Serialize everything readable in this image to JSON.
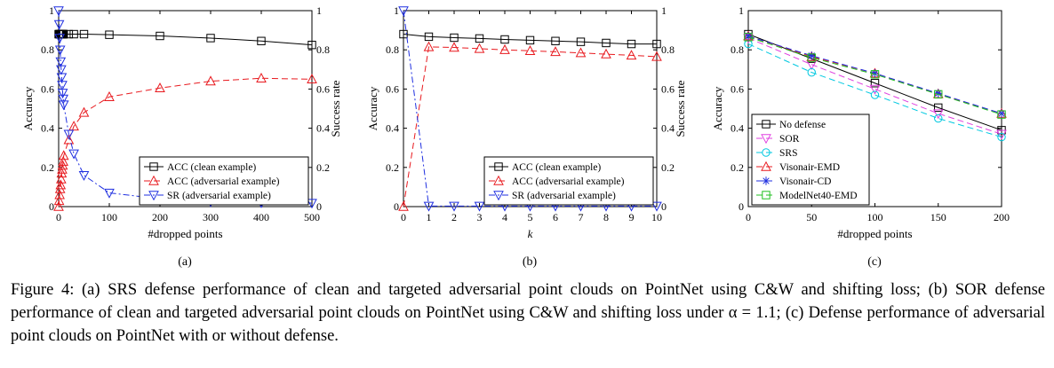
{
  "caption": "Figure 4: (a) SRS defense performance of clean and targeted adversarial point clouds on PointNet using C&W and shifting loss; (b) SOR defense performance of clean and targeted adversarial point clouds on PointNet using C&W and shifting loss under α = 1.1; (c) Defense performance of adversarial point clouds on PointNet with or without defense.",
  "chart_data": [
    {
      "type": "line",
      "panel_label": "(a)",
      "xlabel": "#dropped points",
      "ylabel": "Accuracy",
      "y2label": "Success rate",
      "xlim": [
        0,
        500
      ],
      "ylim": [
        0,
        1
      ],
      "y2lim": [
        0,
        1
      ],
      "xticks": [
        "0",
        "100",
        "200",
        "300",
        "400",
        "500"
      ],
      "yticks": [
        "0",
        "0.2",
        "0.4",
        "0.6",
        "0.8",
        "1"
      ],
      "y2ticks": [
        "0",
        "0.2",
        "0.4",
        "0.6",
        "0.8",
        "1"
      ],
      "legend_position": "bottom-right",
      "grid": false,
      "series": [
        {
          "name": "ACC (clean example)",
          "color": "#000000",
          "dash": "solid",
          "marker": "square",
          "axis": "left",
          "x": [
            0,
            1,
            2,
            3,
            4,
            5,
            6,
            7,
            8,
            9,
            10,
            20,
            30,
            50,
            100,
            200,
            300,
            400,
            500
          ],
          "y": [
            0.88,
            0.88,
            0.88,
            0.88,
            0.88,
            0.88,
            0.88,
            0.88,
            0.88,
            0.88,
            0.88,
            0.88,
            0.88,
            0.88,
            0.877,
            0.871,
            0.86,
            0.845,
            0.825
          ]
        },
        {
          "name": "ACC (adversarial example)",
          "color": "#e8191e",
          "dash": "dashed",
          "marker": "triangle-up",
          "axis": "left",
          "x": [
            0,
            1,
            2,
            3,
            4,
            5,
            6,
            7,
            8,
            9,
            10,
            20,
            30,
            50,
            100,
            200,
            300,
            400,
            500
          ],
          "y": [
            0.0,
            0.03,
            0.06,
            0.09,
            0.11,
            0.14,
            0.17,
            0.19,
            0.21,
            0.23,
            0.26,
            0.34,
            0.41,
            0.48,
            0.56,
            0.605,
            0.64,
            0.655,
            0.65
          ]
        },
        {
          "name": "SR (adversarial example)",
          "color": "#1f2fe0",
          "dash": "dashdot",
          "marker": "triangle-down",
          "axis": "right",
          "x": [
            0,
            1,
            2,
            3,
            4,
            5,
            6,
            7,
            8,
            9,
            10,
            20,
            30,
            50,
            100,
            200,
            300,
            400,
            500
          ],
          "y": [
            1.0,
            0.93,
            0.86,
            0.8,
            0.74,
            0.7,
            0.66,
            0.62,
            0.58,
            0.55,
            0.52,
            0.37,
            0.27,
            0.16,
            0.07,
            0.04,
            0.025,
            0.02,
            0.018
          ]
        }
      ]
    },
    {
      "type": "line",
      "panel_label": "(b)",
      "xlabel": "k",
      "ylabel": "Accuracy",
      "y2label": "Success rate",
      "xlim": [
        0,
        10
      ],
      "ylim": [
        0,
        1
      ],
      "y2lim": [
        0,
        1
      ],
      "xticks": [
        "0",
        "1",
        "2",
        "3",
        "4",
        "5",
        "6",
        "7",
        "8",
        "9",
        "10"
      ],
      "yticks": [
        "0",
        "0.2",
        "0.4",
        "0.6",
        "0.8",
        "1"
      ],
      "y2ticks": [
        "0",
        "0.2",
        "0.4",
        "0.6",
        "0.8",
        "1"
      ],
      "legend_position": "bottom-right",
      "grid": false,
      "series": [
        {
          "name": "ACC (clean example)",
          "color": "#000000",
          "dash": "solid",
          "marker": "square",
          "axis": "left",
          "x": [
            0,
            1,
            2,
            3,
            4,
            5,
            6,
            7,
            8,
            9,
            10
          ],
          "y": [
            0.88,
            0.867,
            0.862,
            0.858,
            0.853,
            0.849,
            0.845,
            0.841,
            0.835,
            0.83,
            0.83
          ]
        },
        {
          "name": "ACC (adversarial example)",
          "color": "#e8191e",
          "dash": "dashed",
          "marker": "triangle-up",
          "axis": "left",
          "x": [
            0,
            1,
            2,
            3,
            4,
            5,
            6,
            7,
            8,
            9,
            10
          ],
          "y": [
            0.0,
            0.815,
            0.812,
            0.806,
            0.8,
            0.795,
            0.79,
            0.784,
            0.778,
            0.772,
            0.765
          ]
        },
        {
          "name": "SR (adversarial example)",
          "color": "#1f2fe0",
          "dash": "dashdot",
          "marker": "triangle-down",
          "axis": "right",
          "x": [
            0,
            1,
            2,
            3,
            4,
            5,
            6,
            7,
            8,
            9,
            10
          ],
          "y": [
            1.0,
            0.003,
            0.003,
            0.003,
            0.003,
            0.003,
            0.003,
            0.003,
            0.003,
            0.003,
            0.003
          ]
        }
      ]
    },
    {
      "type": "line",
      "panel_label": "(c)",
      "xlabel": "#dropped points",
      "ylabel": "Accuracy",
      "xlim": [
        0,
        200
      ],
      "ylim": [
        0,
        1
      ],
      "xticks": [
        "0",
        "50",
        "100",
        "150",
        "200"
      ],
      "yticks": [
        "0",
        "0.2",
        "0.4",
        "0.6",
        "0.8",
        "1"
      ],
      "legend_position": "bottom-left",
      "grid": false,
      "series": [
        {
          "name": "No defense",
          "color": "#000000",
          "dash": "solid",
          "marker": "square",
          "x": [
            0,
            50,
            100,
            150,
            200
          ],
          "y": [
            0.88,
            0.755,
            0.63,
            0.505,
            0.39
          ]
        },
        {
          "name": "SOR",
          "color": "#e040e0",
          "dash": "dashed",
          "marker": "triangle-down",
          "x": [
            0,
            50,
            100,
            150,
            200
          ],
          "y": [
            0.86,
            0.725,
            0.6,
            0.475,
            0.37
          ]
        },
        {
          "name": "SRS",
          "color": "#00c8e0",
          "dash": "dashed",
          "marker": "circle",
          "x": [
            0,
            50,
            100,
            150,
            200
          ],
          "y": [
            0.83,
            0.685,
            0.57,
            0.45,
            0.355
          ]
        },
        {
          "name": "Visonair-EMD",
          "color": "#e8191e",
          "dash": "dashed",
          "marker": "triangle-up",
          "x": [
            0,
            50,
            100,
            150,
            200
          ],
          "y": [
            0.87,
            0.765,
            0.68,
            0.575,
            0.475
          ]
        },
        {
          "name": "Visonair-CD",
          "color": "#1f2fe0",
          "dash": "dashed",
          "marker": "star",
          "x": [
            0,
            50,
            100,
            150,
            200
          ],
          "y": [
            0.87,
            0.77,
            0.68,
            0.578,
            0.475
          ]
        },
        {
          "name": "ModelNet40-EMD",
          "color": "#22c022",
          "dash": "dashed",
          "marker": "square",
          "x": [
            0,
            50,
            100,
            150,
            200
          ],
          "y": [
            0.865,
            0.76,
            0.675,
            0.573,
            0.47
          ]
        }
      ]
    }
  ]
}
